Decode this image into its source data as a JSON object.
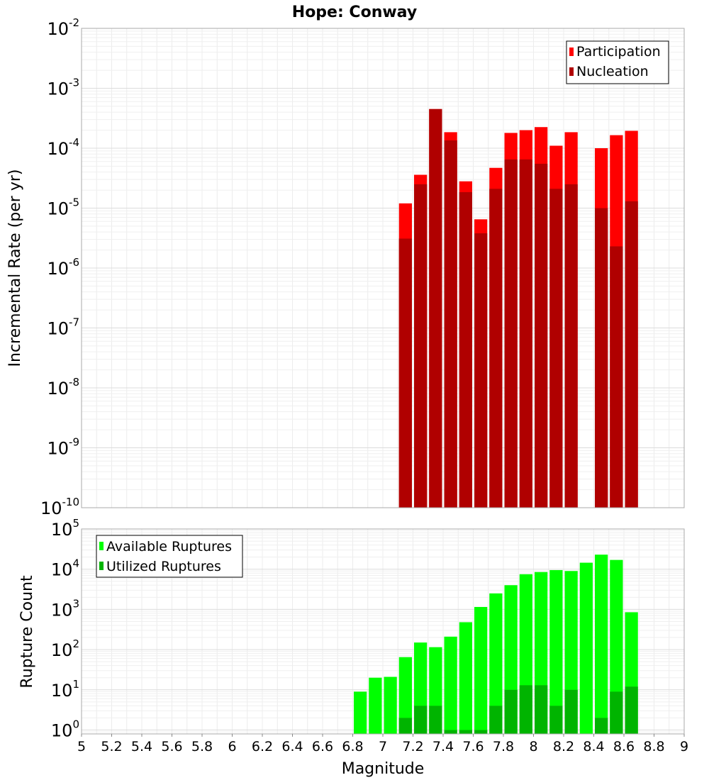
{
  "chart_data": [
    {
      "type": "bar",
      "title": "Hope: Conway",
      "xlabel": "Magnitude",
      "ylabel": "Incremental Rate (per yr)",
      "y_scale": "log",
      "xlim": [
        5,
        9
      ],
      "ylim": [
        1e-10,
        0.01
      ],
      "bar_width": 0.1,
      "legend_position": "top-right",
      "grid": true,
      "colors": {
        "participation": "#ff0000",
        "nucleation": "#b00000"
      },
      "series": [
        {
          "name": "Participation",
          "color": "#ff0000",
          "points": [
            [
              7.15,
              1.2e-05
            ],
            [
              7.25,
              3.6e-05
            ],
            [
              7.35,
              0.00045
            ],
            [
              7.45,
              0.000185
            ],
            [
              7.55,
              2.8e-05
            ],
            [
              7.65,
              6.5e-06
            ],
            [
              7.75,
              4.7e-05
            ],
            [
              7.85,
              0.00018
            ],
            [
              7.95,
              0.0002
            ],
            [
              8.05,
              0.000225
            ],
            [
              8.15,
              0.00011
            ],
            [
              8.25,
              0.000185
            ],
            [
              8.45,
              0.0001
            ],
            [
              8.55,
              0.000165
            ],
            [
              8.65,
              0.000195
            ]
          ]
        },
        {
          "name": "Nucleation",
          "color": "#b00000",
          "points": [
            [
              7.15,
              3.1e-06
            ],
            [
              7.25,
              2.5e-05
            ],
            [
              7.35,
              0.00045
            ],
            [
              7.45,
              0.000135
            ],
            [
              7.55,
              1.85e-05
            ],
            [
              7.65,
              3.8e-06
            ],
            [
              7.75,
              2.1e-05
            ],
            [
              7.85,
              6.5e-05
            ],
            [
              7.95,
              6.5e-05
            ],
            [
              8.05,
              5.5e-05
            ],
            [
              8.15,
              2.1e-05
            ],
            [
              8.25,
              2.5e-05
            ],
            [
              8.45,
              1e-05
            ],
            [
              8.55,
              2.3e-06
            ],
            [
              8.65,
              1.3e-05
            ]
          ]
        }
      ]
    },
    {
      "type": "bar",
      "title": "",
      "xlabel": "Magnitude",
      "ylabel": "Rupture Count",
      "y_scale": "log",
      "xlim": [
        5,
        9
      ],
      "ylim": [
        0.8,
        100000.0
      ],
      "bar_width": 0.1,
      "legend_position": "top-left",
      "grid": true,
      "colors": {
        "available": "#00ff00",
        "utilized": "#00b400"
      },
      "x_ticks": [
        5,
        5.2,
        5.4,
        5.6,
        5.8,
        6,
        6.2,
        6.4,
        6.6,
        6.8,
        7,
        7.2,
        7.4,
        7.6,
        7.8,
        8,
        8.2,
        8.4,
        8.6,
        8.8,
        9
      ],
      "series": [
        {
          "name": "Available Ruptures",
          "color": "#00ff00",
          "points": [
            [
              6.85,
              9
            ],
            [
              6.95,
              20
            ],
            [
              7.05,
              21
            ],
            [
              7.15,
              65
            ],
            [
              7.25,
              150
            ],
            [
              7.35,
              115
            ],
            [
              7.45,
              210
            ],
            [
              7.55,
              480
            ],
            [
              7.65,
              1150
            ],
            [
              7.75,
              2500
            ],
            [
              7.85,
              4000
            ],
            [
              7.95,
              7500
            ],
            [
              8.05,
              8500
            ],
            [
              8.15,
              9500
            ],
            [
              8.25,
              9000
            ],
            [
              8.35,
              14500
            ],
            [
              8.45,
              23000
            ],
            [
              8.55,
              17000
            ],
            [
              8.65,
              850
            ]
          ]
        },
        {
          "name": "Utilized Ruptures",
          "color": "#00b400",
          "points": [
            [
              7.15,
              2
            ],
            [
              7.25,
              4
            ],
            [
              7.35,
              4
            ],
            [
              7.45,
              1
            ],
            [
              7.55,
              1
            ],
            [
              7.65,
              1
            ],
            [
              7.75,
              4
            ],
            [
              7.85,
              10
            ],
            [
              7.95,
              13
            ],
            [
              8.05,
              13
            ],
            [
              8.15,
              4
            ],
            [
              8.25,
              10
            ],
            [
              8.45,
              2
            ],
            [
              8.55,
              9
            ],
            [
              8.65,
              12
            ]
          ]
        }
      ]
    }
  ]
}
